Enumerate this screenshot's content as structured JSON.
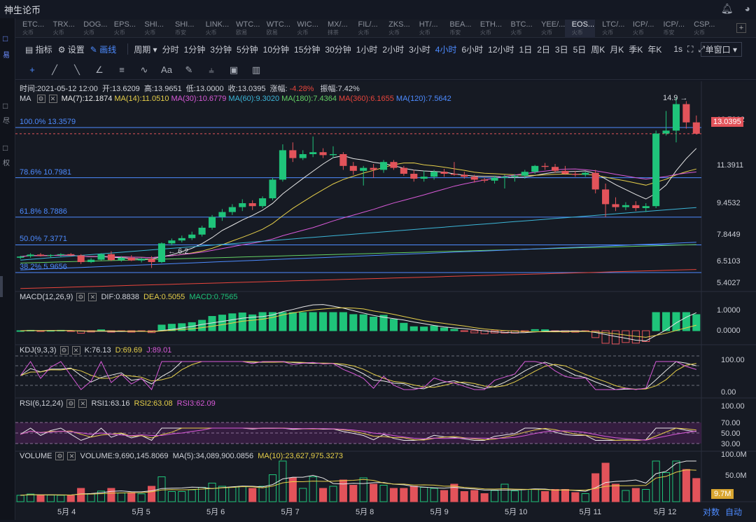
{
  "app_title": "神生论币",
  "titlebar": {
    "bell_icon": "bell-icon",
    "user_icon": "user-icon"
  },
  "sidebar": {
    "labels": [
      "易",
      "尽",
      "权"
    ]
  },
  "tabs": [
    {
      "name": "ETC...",
      "sub": "火币"
    },
    {
      "name": "TRX...",
      "sub": "火币"
    },
    {
      "name": "DOG...",
      "sub": "火币"
    },
    {
      "name": "EPS...",
      "sub": "火币"
    },
    {
      "name": "SHI...",
      "sub": "火币"
    },
    {
      "name": "SHI...",
      "sub": "币安"
    },
    {
      "name": "LINK...",
      "sub": "火币"
    },
    {
      "name": "WTC...",
      "sub": "欧易"
    },
    {
      "name": "WTC...",
      "sub": "欧易"
    },
    {
      "name": "WIC...",
      "sub": "火币"
    },
    {
      "name": "MX/...",
      "sub": "抹茶"
    },
    {
      "name": "FIL/...",
      "sub": "火币"
    },
    {
      "name": "ZKS...",
      "sub": "火币"
    },
    {
      "name": "HT/...",
      "sub": "火币"
    },
    {
      "name": "BEA...",
      "sub": "币安"
    },
    {
      "name": "ETH...",
      "sub": "火币"
    },
    {
      "name": "BTC...",
      "sub": "火币"
    },
    {
      "name": "YEE/...",
      "sub": "火币"
    },
    {
      "name": "EOS...",
      "sub": "火币"
    },
    {
      "name": "LTC/...",
      "sub": "火币"
    },
    {
      "name": "ICP/...",
      "sub": "火币"
    },
    {
      "name": "ICP/...",
      "sub": "币安"
    },
    {
      "name": "CSP...",
      "sub": "火币"
    }
  ],
  "active_tab": 18,
  "toolbar": {
    "indicators": "指标",
    "settings": "设置",
    "draw": "画线",
    "period_label": "周期",
    "periods": [
      "分时",
      "1分钟",
      "3分钟",
      "5分钟",
      "10分钟",
      "15分钟",
      "30分钟",
      "1小时",
      "2小时",
      "3小时",
      "4小时",
      "6小时",
      "12小时",
      "1日",
      "2日",
      "3日",
      "5日",
      "周K",
      "月K",
      "季K",
      "年K"
    ],
    "active_period": "4小时",
    "seconds": "1s",
    "window_mode": "单窗口"
  },
  "drawing_tools": [
    "crosshair-icon",
    "pen-icon",
    "line-icon",
    "angle-icon",
    "hlines-icon",
    "wave-icon",
    "text-icon",
    "brush-icon",
    "measure-icon",
    "lock-icon",
    "trash-icon"
  ],
  "info_line": {
    "time": "时间:2021-05-12 12:00",
    "open": "开:13.6209",
    "high": "高:13.9651",
    "low": "低:13.0000",
    "close": "收:13.0395",
    "change_label": "涨幅:",
    "change_value": "-4.28%",
    "amplitude": "振幅:7.42%"
  },
  "ma_legend": {
    "label": "MA",
    "items": [
      {
        "text": "MA(7):12.1874",
        "color": "#e8e8e8"
      },
      {
        "text": "MA(14):11.0510",
        "color": "#e6cf4a"
      },
      {
        "text": "MA(30):10.6779",
        "color": "#d85ad8"
      },
      {
        "text": "MA(60):9.3020",
        "color": "#3cb6d8"
      },
      {
        "text": "MA(180):7.4364",
        "color": "#64d064"
      },
      {
        "text": "MA(360):6.1655",
        "color": "#e8453c"
      },
      {
        "text": "MA(120):7.5642",
        "color": "#4d8bff"
      }
    ]
  },
  "fib_levels": [
    {
      "label": "100.0% 13.3579",
      "value": 13.3579
    },
    {
      "label": "78.6% 10.7981",
      "value": 10.7981
    },
    {
      "label": "61.8% 8.7886",
      "value": 8.7886
    },
    {
      "label": "50.0% 7.3771",
      "value": 7.3771
    },
    {
      "label": "38.2% 5.9656",
      "value": 5.9656
    }
  ],
  "price_axis": [
    "13.7262",
    "11.3911",
    "9.4532",
    "7.8449",
    "6.5103",
    "5.4027"
  ],
  "current_price": "13.0395",
  "annotations": {
    "high_mark": "14.9",
    "low_mark": "6.2"
  },
  "macd": {
    "label": "MACD(12,26,9)",
    "dif": "DIF:0.8838",
    "dea": "DEA:0.5055",
    "macd": "MACD:0.7565",
    "axis": [
      "1.0000",
      "0.0000"
    ]
  },
  "kdj": {
    "label": "KDJ(9,3,3)",
    "k": "K:76.13",
    "d": "D:69.69",
    "j": "J:89.01",
    "axis": [
      "100.00",
      "0.00"
    ]
  },
  "rsi": {
    "label": "RSI(6,12,24)",
    "r1": "RSI1:63.16",
    "r2": "RSI2:63.08",
    "r3": "RSI3:62.09",
    "axis": [
      "100.00",
      "70.00",
      "50.00",
      "30.00"
    ]
  },
  "volume": {
    "label": "VOLUME",
    "value": "VOLUME:9,690,145.8069",
    "ma5": "MA(5):34,089,900.0856",
    "ma10": "MA(10):23,627,975.3273",
    "axis": [
      "100.0M",
      "50.0M"
    ],
    "current": "9.7M"
  },
  "date_axis": [
    "5月 4",
    "5月 5",
    "5月 6",
    "5月 7",
    "5月 8",
    "5月 9",
    "5月 10",
    "5月 11",
    "5月 12"
  ],
  "bottom_buttons": {
    "log": "对数",
    "auto": "自动"
  },
  "chart_data": {
    "type": "candlestick",
    "period": "4小时",
    "candles": [
      [
        6.72,
        6.82,
        6.65,
        6.78
      ],
      [
        6.8,
        6.95,
        6.72,
        6.88
      ],
      [
        6.88,
        6.96,
        6.78,
        6.82
      ],
      [
        6.82,
        6.9,
        6.72,
        6.86
      ],
      [
        6.86,
        6.95,
        6.78,
        6.9
      ],
      [
        6.9,
        6.96,
        6.8,
        6.84
      ],
      [
        6.84,
        6.9,
        6.4,
        6.5
      ],
      [
        6.5,
        6.7,
        6.45,
        6.62
      ],
      [
        6.62,
        6.95,
        6.58,
        6.9
      ],
      [
        6.9,
        7.05,
        6.55,
        6.6
      ],
      [
        6.6,
        6.8,
        6.52,
        6.72
      ],
      [
        6.72,
        6.85,
        6.55,
        6.58
      ],
      [
        6.58,
        6.72,
        6.48,
        6.66
      ],
      [
        6.66,
        6.8,
        6.2,
        6.5
      ],
      [
        6.5,
        7.5,
        6.45,
        7.45
      ],
      [
        7.45,
        7.7,
        7.35,
        7.6
      ],
      [
        7.6,
        7.85,
        7.5,
        7.72
      ],
      [
        7.72,
        8.05,
        7.62,
        7.9
      ],
      [
        7.9,
        8.35,
        7.8,
        8.25
      ],
      [
        8.25,
        8.9,
        8.15,
        8.8
      ],
      [
        8.8,
        9.2,
        8.6,
        9.05
      ],
      [
        9.05,
        9.45,
        8.9,
        9.3
      ],
      [
        9.3,
        9.7,
        9.1,
        9.5
      ],
      [
        9.5,
        9.65,
        9.15,
        9.35
      ],
      [
        9.35,
        9.85,
        9.25,
        9.75
      ],
      [
        9.75,
        10.8,
        9.65,
        10.7
      ],
      [
        10.7,
        12.5,
        10.6,
        12.2
      ],
      [
        12.2,
        12.6,
        11.6,
        11.8
      ],
      [
        11.8,
        12.2,
        11.7,
        12.0
      ],
      [
        12.0,
        12.9,
        11.85,
        12.1
      ],
      [
        12.1,
        12.3,
        11.8,
        11.95
      ],
      [
        11.95,
        12.4,
        11.8,
        12.0
      ],
      [
        12.0,
        12.1,
        11.2,
        11.4
      ],
      [
        11.4,
        11.6,
        10.95,
        11.15
      ],
      [
        11.15,
        11.4,
        10.4,
        11.3
      ],
      [
        11.3,
        11.5,
        10.8,
        11.2
      ],
      [
        11.2,
        11.7,
        11.05,
        11.6
      ],
      [
        11.6,
        11.7,
        11.2,
        11.3
      ],
      [
        11.3,
        11.4,
        10.9,
        11.0
      ],
      [
        11.0,
        11.2,
        10.6,
        10.75
      ],
      [
        10.75,
        11.15,
        10.6,
        10.85
      ],
      [
        10.85,
        11.2,
        10.7,
        11.1
      ],
      [
        11.1,
        11.25,
        10.85,
        11.0
      ],
      [
        11.0,
        11.6,
        10.9,
        10.95
      ],
      [
        10.95,
        11.1,
        10.75,
        10.85
      ],
      [
        10.85,
        10.95,
        10.55,
        10.7
      ],
      [
        10.7,
        10.8,
        10.55,
        10.65
      ],
      [
        10.65,
        10.9,
        10.5,
        10.8
      ],
      [
        10.8,
        10.95,
        10.25,
        10.85
      ],
      [
        10.85,
        10.98,
        10.6,
        10.9
      ],
      [
        10.9,
        11.2,
        10.75,
        11.1
      ],
      [
        11.1,
        11.45,
        11.0,
        11.4
      ],
      [
        11.4,
        11.55,
        11.2,
        11.35
      ],
      [
        11.35,
        11.5,
        11.05,
        11.15
      ],
      [
        11.15,
        11.4,
        10.95,
        11.0
      ],
      [
        11.0,
        11.15,
        10.85,
        10.95
      ],
      [
        10.95,
        11.1,
        10.85,
        11.05
      ],
      [
        11.05,
        11.2,
        10.0,
        10.2
      ],
      [
        10.2,
        10.5,
        8.8,
        9.45
      ],
      [
        9.45,
        9.8,
        9.1,
        9.3
      ],
      [
        9.3,
        9.55,
        9.15,
        9.4
      ],
      [
        9.4,
        9.6,
        9.1,
        9.25
      ],
      [
        9.25,
        9.5,
        9.05,
        9.35
      ],
      [
        9.35,
        13.2,
        9.25,
        13.05
      ],
      [
        13.05,
        14.2,
        12.95,
        13.2
      ],
      [
        13.2,
        14.9,
        12.6,
        14.55
      ],
      [
        14.55,
        14.7,
        13.3,
        13.62
      ],
      [
        13.62,
        13.97,
        13.0,
        13.04
      ]
    ],
    "price_range": [
      5.0,
      15.0
    ],
    "dates": [
      "5月 4",
      "5月 5",
      "5月 6",
      "5月 7",
      "5月 8",
      "5月 9",
      "5月 10",
      "5月 11",
      "5月 12"
    ]
  }
}
